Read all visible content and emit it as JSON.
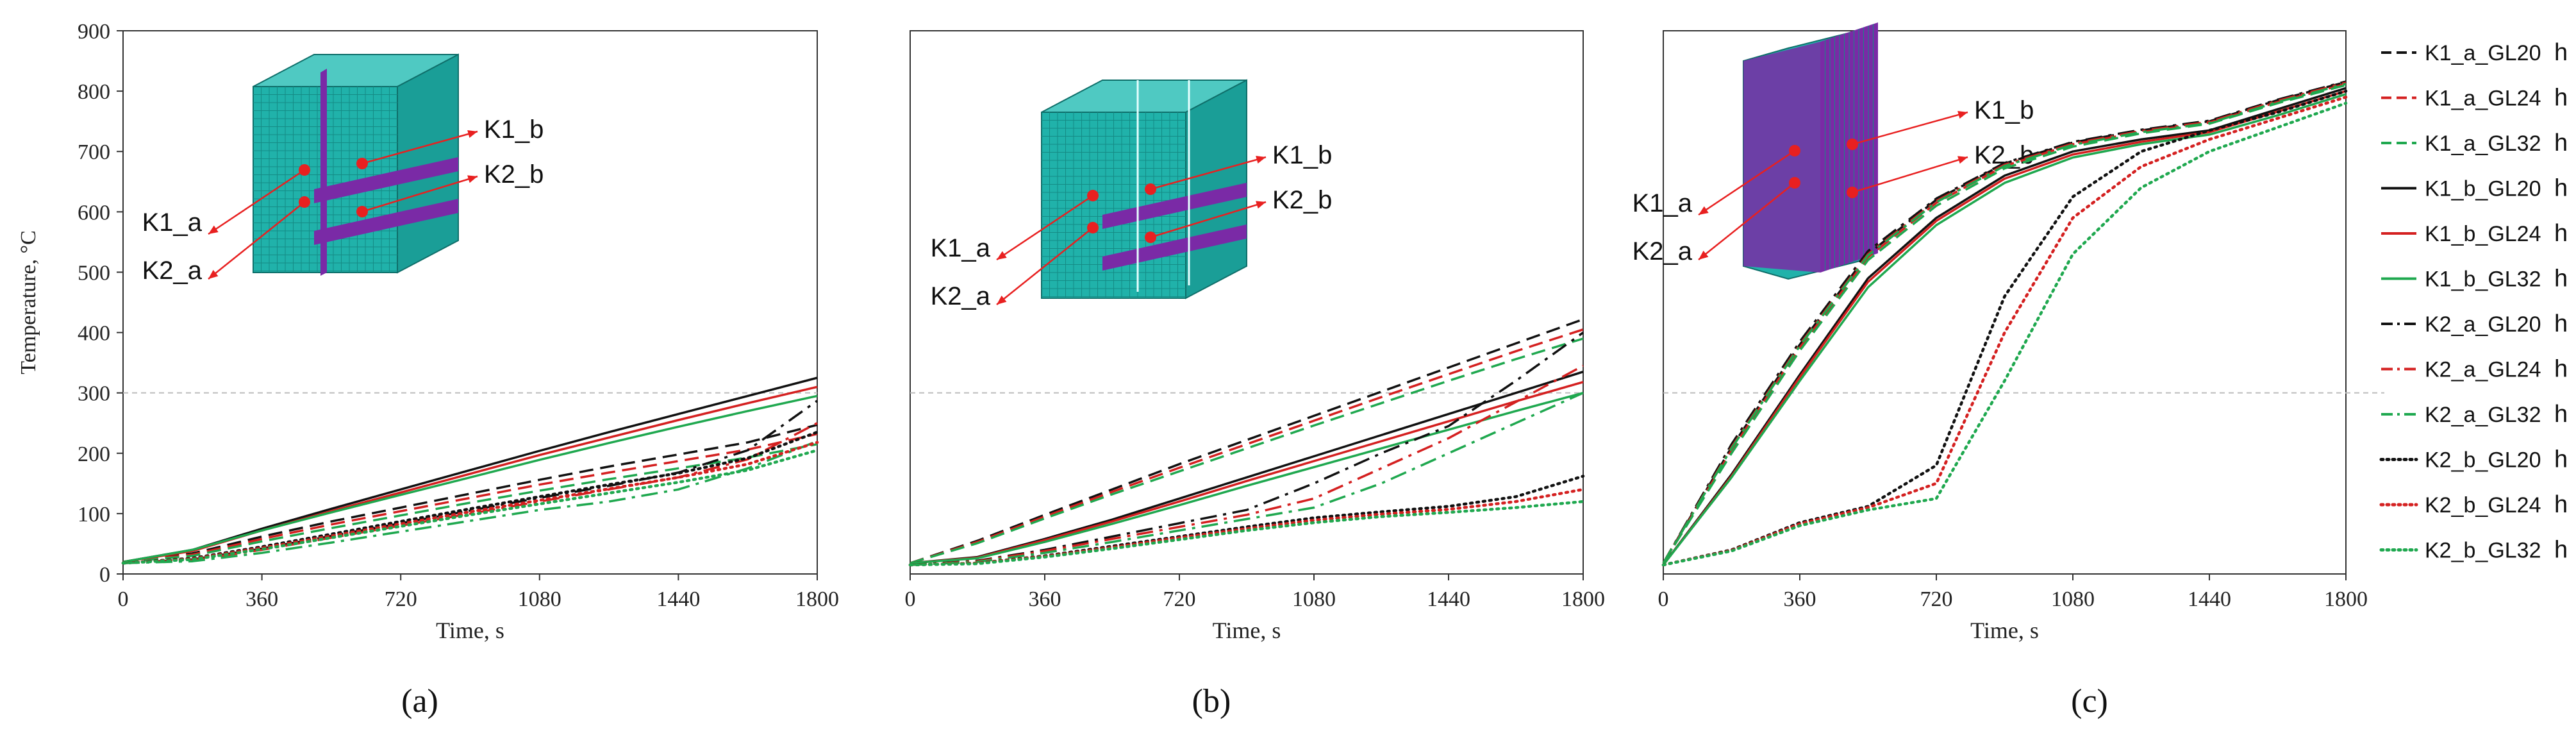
{
  "figure": {
    "panel_labels": [
      "(a)",
      "(b)",
      "(c)"
    ],
    "colors": {
      "black": "#111111",
      "red": "#d42020",
      "green": "#1fa84f",
      "axis": "#333333",
      "ref": "#bdbdbd",
      "teal": "#20b2aa",
      "purple": "#7a2aa6",
      "arrow": "#e82020"
    },
    "legend_entries": [
      {
        "label": "K1_a_GL20",
        "suffix": "h",
        "color": "#111111",
        "dash": "dash"
      },
      {
        "label": "K1_a_GL24",
        "suffix": "h",
        "color": "#d42020",
        "dash": "dash"
      },
      {
        "label": "K1_a_GL32",
        "suffix": "h",
        "color": "#1fa84f",
        "dash": "dash"
      },
      {
        "label": "K1_b_GL20",
        "suffix": "h",
        "color": "#111111",
        "dash": "solid"
      },
      {
        "label": "K1_b_GL24",
        "suffix": "h",
        "color": "#d42020",
        "dash": "solid"
      },
      {
        "label": "K1_b_GL32",
        "suffix": "h",
        "color": "#1fa84f",
        "dash": "solid"
      },
      {
        "label": "K2_a_GL20",
        "suffix": "h",
        "color": "#111111",
        "dash": "dashdot"
      },
      {
        "label": "K2_a_GL24",
        "suffix": "h",
        "color": "#d42020",
        "dash": "dashdot"
      },
      {
        "label": "K2_a_GL32",
        "suffix": "h",
        "color": "#1fa84f",
        "dash": "dashdot"
      },
      {
        "label": "K2_b_GL20",
        "suffix": "h",
        "color": "#111111",
        "dash": "dot"
      },
      {
        "label": "K2_b_GL24",
        "suffix": "h",
        "color": "#d42020",
        "dash": "dot"
      },
      {
        "label": "K2_b_GL32",
        "suffix": "h",
        "color": "#1fa84f",
        "dash": "dot"
      }
    ]
  },
  "chart_data": [
    {
      "type": "line",
      "panel": "(a)",
      "xlabel": "Time, s",
      "ylabel": "Temperature, °C",
      "xlim": [
        0,
        1800
      ],
      "ylim": [
        0,
        900
      ],
      "xticks": [
        0,
        360,
        720,
        1080,
        1440,
        1800
      ],
      "yticks": [
        0,
        100,
        200,
        300,
        400,
        500,
        600,
        700,
        800,
        900
      ],
      "reference_line_y": 300,
      "inset_labels": [
        "K1_b",
        "K2_b",
        "K1_a",
        "K2_a"
      ],
      "x": [
        0,
        180,
        360,
        540,
        720,
        900,
        1080,
        1260,
        1440,
        1620,
        1800
      ],
      "series": [
        {
          "name": "K1_a_GL20",
          "values": [
            20,
            34,
            62,
            87,
            110,
            133,
            156,
            178,
            198,
            218,
            247
          ]
        },
        {
          "name": "K1_a_GL24",
          "values": [
            20,
            32,
            58,
            82,
            104,
            126,
            148,
            168,
            187,
            206,
            232
          ]
        },
        {
          "name": "K1_a_GL32",
          "values": [
            20,
            30,
            54,
            76,
            97,
            118,
            138,
            157,
            175,
            193,
            215
          ]
        },
        {
          "name": "K1_b_GL20",
          "values": [
            20,
            40,
            75,
            108,
            140,
            172,
            204,
            235,
            265,
            295,
            325
          ]
        },
        {
          "name": "K1_b_GL24",
          "values": [
            20,
            38,
            72,
            104,
            135,
            166,
            197,
            226,
            255,
            283,
            310
          ]
        },
        {
          "name": "K1_b_GL32",
          "values": [
            20,
            40,
            72,
            102,
            131,
            160,
            189,
            217,
            244,
            270,
            295
          ]
        },
        {
          "name": "K2_a_GL20",
          "values": [
            18,
            24,
            42,
            63,
            84,
            105,
            126,
            146,
            168,
            205,
            287
          ]
        },
        {
          "name": "K2_a_GL24",
          "values": [
            18,
            23,
            40,
            60,
            80,
            100,
            120,
            140,
            160,
            190,
            250
          ]
        },
        {
          "name": "K2_a_GL32",
          "values": [
            18,
            21,
            35,
            52,
            70,
            88,
            106,
            120,
            140,
            175,
            220
          ]
        },
        {
          "name": "K2_b_GL20",
          "values": [
            18,
            26,
            45,
            66,
            87,
            108,
            128,
            148,
            167,
            192,
            235
          ]
        },
        {
          "name": "K2_b_GL24",
          "values": [
            18,
            25,
            43,
            63,
            83,
            103,
            122,
            141,
            160,
            182,
            218
          ]
        },
        {
          "name": "K2_b_GL32",
          "values": [
            18,
            24,
            41,
            60,
            79,
            98,
            116,
            134,
            152,
            172,
            205
          ]
        }
      ]
    },
    {
      "type": "line",
      "panel": "(b)",
      "xlabel": "Time, s",
      "ylabel": "",
      "xlim": [
        0,
        1800
      ],
      "ylim": [
        0,
        900
      ],
      "xticks": [
        0,
        360,
        720,
        1080,
        1440,
        1800
      ],
      "yticks": [],
      "reference_line_y": 300,
      "inset_labels": [
        "K1_b",
        "K2_b",
        "K1_a",
        "K2_a"
      ],
      "x": [
        0,
        180,
        360,
        540,
        720,
        900,
        1080,
        1260,
        1440,
        1620,
        1800
      ],
      "series": [
        {
          "name": "K1_a_GL20",
          "values": [
            18,
            55,
            98,
            140,
            182,
            222,
            262,
            302,
            342,
            382,
            422
          ]
        },
        {
          "name": "K1_a_GL24",
          "values": [
            18,
            53,
            95,
            136,
            176,
            215,
            254,
            293,
            331,
            369,
            405
          ]
        },
        {
          "name": "K1_a_GL32",
          "values": [
            18,
            51,
            92,
            132,
            170,
            208,
            246,
            283,
            320,
            356,
            390
          ]
        },
        {
          "name": "K1_b_GL20",
          "values": [
            18,
            28,
            58,
            90,
            125,
            160,
            195,
            230,
            265,
            300,
            335
          ]
        },
        {
          "name": "K1_b_GL24",
          "values": [
            18,
            27,
            56,
            87,
            120,
            154,
            187,
            220,
            253,
            286,
            318
          ]
        },
        {
          "name": "K1_b_GL32",
          "values": [
            18,
            26,
            53,
            83,
            114,
            146,
            177,
            208,
            239,
            270,
            300
          ]
        },
        {
          "name": "K2_a_GL20",
          "values": [
            15,
            22,
            40,
            62,
            84,
            106,
            150,
            200,
            245,
            320,
            400
          ]
        },
        {
          "name": "K2_a_GL24",
          "values": [
            15,
            21,
            38,
            58,
            78,
            98,
            125,
            175,
            225,
            285,
            345
          ]
        },
        {
          "name": "K2_a_GL32",
          "values": [
            15,
            20,
            35,
            53,
            72,
            91,
            110,
            150,
            200,
            250,
            300
          ]
        },
        {
          "name": "K2_b_GL20",
          "values": [
            15,
            18,
            30,
            46,
            62,
            78,
            93,
            103,
            112,
            128,
            162
          ]
        },
        {
          "name": "K2_b_GL24",
          "values": [
            15,
            18,
            29,
            44,
            60,
            75,
            89,
            99,
            107,
            120,
            140
          ]
        },
        {
          "name": "K2_b_GL32",
          "values": [
            15,
            17,
            28,
            42,
            57,
            72,
            85,
            95,
            102,
            110,
            120
          ]
        }
      ]
    },
    {
      "type": "line",
      "panel": "(c)",
      "xlabel": "Time, s",
      "ylabel": "",
      "xlim": [
        0,
        1800
      ],
      "ylim": [
        0,
        900
      ],
      "xticks": [
        0,
        360,
        720,
        1080,
        1440,
        1800
      ],
      "yticks": [],
      "reference_line_y": 300,
      "inset_labels": [
        "K1_b",
        "K2_b",
        "K1_a",
        "K2_a"
      ],
      "x": [
        0,
        180,
        360,
        540,
        720,
        900,
        1080,
        1260,
        1440,
        1620,
        1800
      ],
      "series": [
        {
          "name": "K1_a_GL20",
          "values": [
            18,
            210,
            380,
            530,
            620,
            680,
            715,
            735,
            750,
            785,
            815
          ]
        },
        {
          "name": "K1_a_GL24",
          "values": [
            18,
            205,
            375,
            525,
            615,
            676,
            712,
            732,
            748,
            782,
            812
          ]
        },
        {
          "name": "K1_a_GL32",
          "values": [
            18,
            200,
            370,
            520,
            610,
            672,
            708,
            730,
            746,
            780,
            810
          ]
        },
        {
          "name": "K1_b_GL20",
          "values": [
            15,
            165,
            330,
            490,
            590,
            660,
            700,
            720,
            735,
            770,
            805
          ]
        },
        {
          "name": "K1_b_GL24",
          "values": [
            15,
            162,
            326,
            484,
            585,
            655,
            695,
            716,
            732,
            766,
            800
          ]
        },
        {
          "name": "K1_b_GL32",
          "values": [
            15,
            160,
            320,
            475,
            578,
            648,
            690,
            712,
            728,
            760,
            795
          ]
        },
        {
          "name": "K2_a_GL20",
          "values": [
            18,
            215,
            385,
            535,
            622,
            681,
            716,
            736,
            751,
            786,
            816
          ]
        },
        {
          "name": "K2_a_GL24",
          "values": [
            18,
            210,
            380,
            530,
            618,
            678,
            713,
            734,
            749,
            784,
            814
          ]
        },
        {
          "name": "K2_a_GL32",
          "values": [
            18,
            208,
            378,
            528,
            616,
            676,
            711,
            732,
            747,
            782,
            812
          ]
        },
        {
          "name": "K2_b_GL20",
          "values": [
            15,
            40,
            85,
            112,
            180,
            460,
            625,
            700,
            735,
            765,
            800
          ]
        },
        {
          "name": "K2_b_GL24",
          "values": [
            15,
            39,
            83,
            110,
            150,
            400,
            590,
            675,
            720,
            755,
            790
          ]
        },
        {
          "name": "K2_b_GL32",
          "values": [
            15,
            38,
            80,
            106,
            125,
            320,
            530,
            640,
            700,
            740,
            780
          ]
        }
      ]
    }
  ]
}
